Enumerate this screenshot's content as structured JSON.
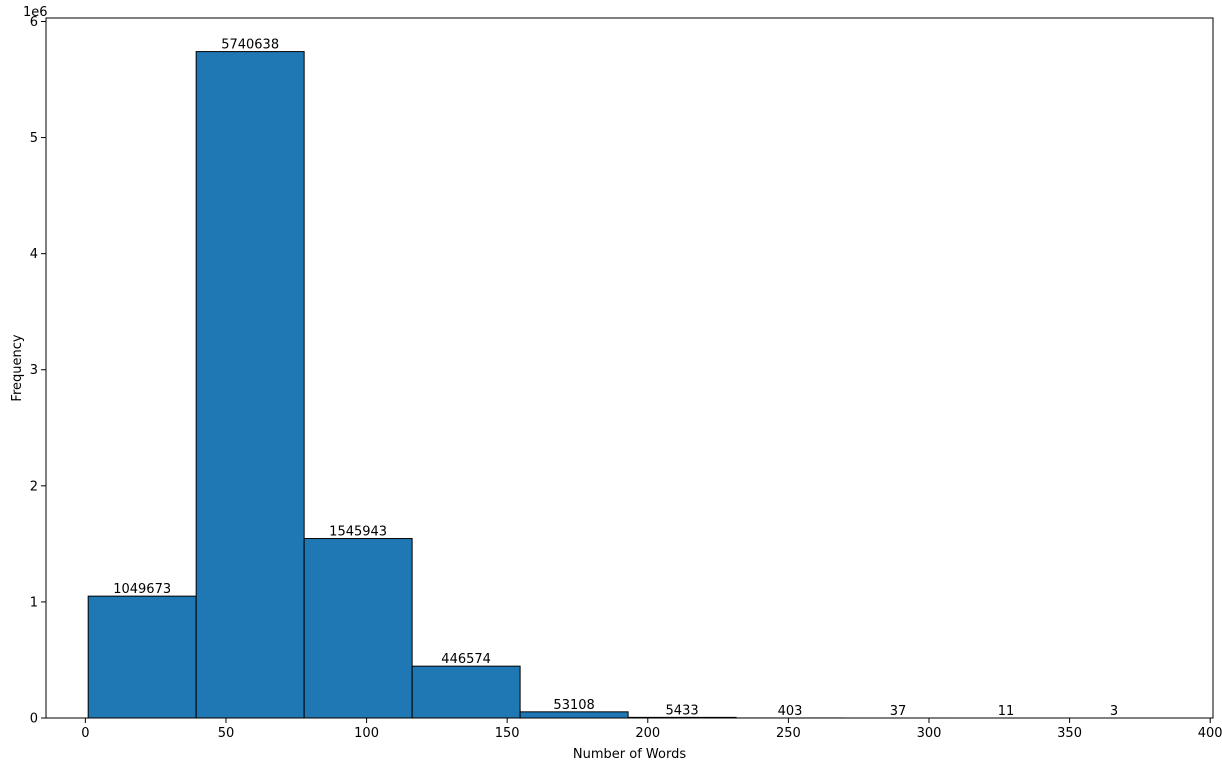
{
  "chart_data": {
    "type": "bar",
    "subtype": "histogram",
    "title": "",
    "xlabel": "Number of Words",
    "ylabel": "Frequency",
    "y_scale_label": "1e6",
    "bar_color": "#1f77b4",
    "edge_color": "#000000",
    "grid": false,
    "xlim": [
      -14,
      401
    ],
    "ylim": [
      0,
      6.03
    ],
    "y_scale_factor": 1000000,
    "x_ticks": [
      0,
      50,
      100,
      150,
      200,
      250,
      300,
      350,
      400
    ],
    "y_ticks": [
      0,
      1,
      2,
      3,
      4,
      5,
      6
    ],
    "bins": [
      {
        "start": 1,
        "end": 39.4,
        "value": 1049673,
        "label": "1049673"
      },
      {
        "start": 39.4,
        "end": 77.8,
        "value": 5740638,
        "label": "5740638"
      },
      {
        "start": 77.8,
        "end": 116.2,
        "value": 1545943,
        "label": "1545943"
      },
      {
        "start": 116.2,
        "end": 154.6,
        "value": 446574,
        "label": "446574"
      },
      {
        "start": 154.6,
        "end": 193.0,
        "value": 53108,
        "label": "53108"
      },
      {
        "start": 193.0,
        "end": 231.4,
        "value": 5433,
        "label": "5433"
      },
      {
        "start": 231.4,
        "end": 269.8,
        "value": 403,
        "label": "403"
      },
      {
        "start": 269.8,
        "end": 308.2,
        "value": 37,
        "label": "37"
      },
      {
        "start": 308.2,
        "end": 346.6,
        "value": 11,
        "label": "11"
      },
      {
        "start": 346.6,
        "end": 385.0,
        "value": 3,
        "label": "3"
      }
    ]
  }
}
